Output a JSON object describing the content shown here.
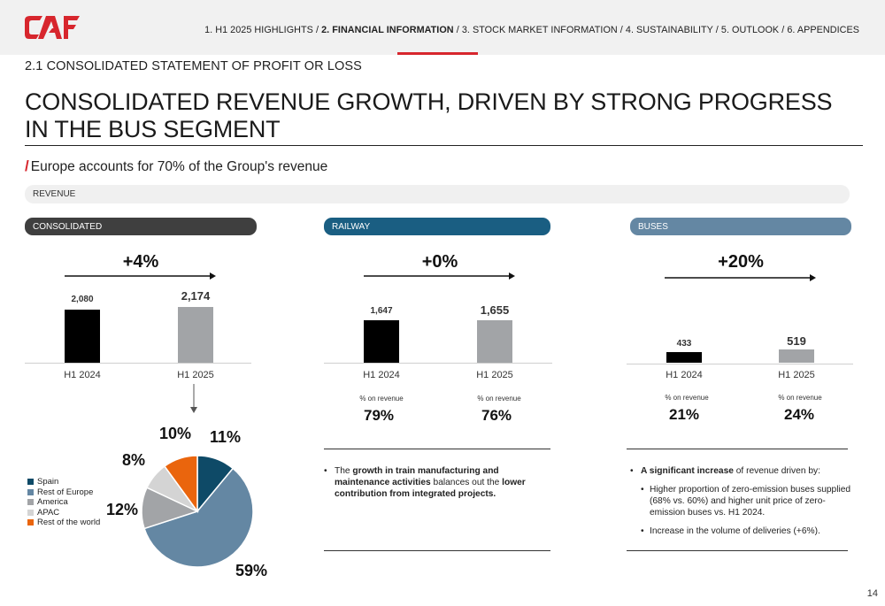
{
  "header": {
    "logo_text": "CAF",
    "nav_items": [
      {
        "label": "1. H1 2025 HIGHLIGHTS /",
        "active": false
      },
      {
        "label": "2. FINANCIAL INFORMATION",
        "active": true
      },
      {
        "label": "/ 3. STOCK MARKET INFORMATION / 4. SUSTAINABILITY / 5. OUTLOOK / 6. APPENDICES",
        "active": false
      }
    ]
  },
  "section_label": "2.1 CONSOLIDATED STATEMENT OF PROFIT OR LOSS",
  "title": "CONSOLIDATED REVENUE GROWTH, DRIVEN BY STRONG PROGRESS IN THE BUS SEGMENT",
  "subtitle": "Europe accounts for 70% of the Group's revenue",
  "revenue_label": "REVENUE",
  "colors": {
    "brand_red": "#d7262d",
    "dark": "#3f3f3f",
    "railway": "#1a5e82",
    "buses": "#6487a3",
    "bar_2024": "#000000",
    "bar_2025": "#a2a4a7"
  },
  "chart_data": [
    {
      "type": "bar",
      "title": "CONSOLIDATED",
      "growth": "+4%",
      "categories": [
        "H1 2024",
        "H1 2025"
      ],
      "values": [
        2080,
        2174
      ],
      "value_labels": [
        "2,080",
        "2,174"
      ]
    },
    {
      "type": "bar",
      "title": "RAILWAY",
      "growth": "+0%",
      "categories": [
        "H1 2024",
        "H1 2025"
      ],
      "values": [
        1647,
        1655
      ],
      "value_labels": [
        "1,647",
        "1,655"
      ],
      "share_label": "% on revenue",
      "shares": [
        "79%",
        "76%"
      ]
    },
    {
      "type": "bar",
      "title": "BUSES",
      "growth": "+20%",
      "categories": [
        "H1 2024",
        "H1 2025"
      ],
      "values": [
        433,
        519
      ],
      "value_labels": [
        "433",
        "519"
      ],
      "share_label": "% on revenue",
      "shares": [
        "21%",
        "24%"
      ]
    },
    {
      "type": "pie",
      "labels": [
        "Spain",
        "Rest of Europe",
        "America",
        "APAC",
        "Rest of the world"
      ],
      "values": [
        11,
        59,
        12,
        8,
        10
      ],
      "value_labels": [
        "11%",
        "59%",
        "12%",
        "8%",
        "10%"
      ],
      "colors": [
        "#0e4a67",
        "#6487a3",
        "#a2a4a7",
        "#d4d4d4",
        "#ea650d"
      ]
    }
  ],
  "railway_text": {
    "pre": "The ",
    "b1": "growth in train manufacturing and maintenance activities",
    "mid": " balances out the ",
    "b2": "lower contribution from integrated projects."
  },
  "buses_text": {
    "lead_bold": "A significant increase",
    "lead_rest": " of revenue driven by:",
    "sub1": "Higher proportion of zero-emission buses supplied (68% vs. 60%) and higher unit price of zero-emission buses vs. H1 2024.",
    "sub2": "Increase in the volume of deliveries (+6%)."
  },
  "page_number": "14"
}
